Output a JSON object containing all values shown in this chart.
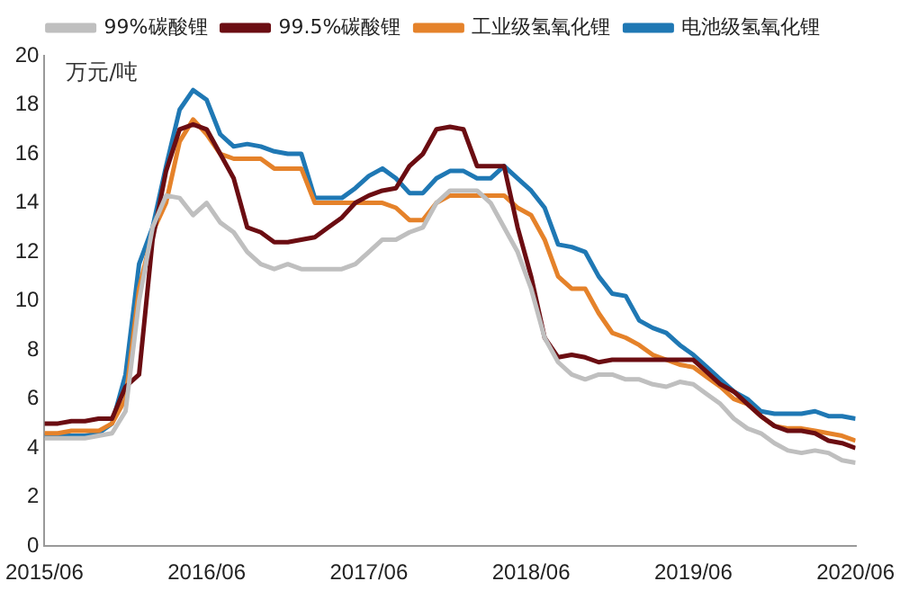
{
  "chart_data": {
    "type": "line",
    "ylabel": "万元/吨",
    "legend": "top",
    "grid": false,
    "marker": "none",
    "line_style": "solid",
    "x": [
      "2015-06",
      "2015-07",
      "2015-08",
      "2015-09",
      "2015-10",
      "2015-11",
      "2015-12",
      "2016-01",
      "2016-02",
      "2016-03",
      "2016-04",
      "2016-05",
      "2016-06",
      "2016-07",
      "2016-08",
      "2016-09",
      "2016-10",
      "2016-11",
      "2016-12",
      "2017-01",
      "2017-02",
      "2017-03",
      "2017-04",
      "2017-05",
      "2017-06",
      "2017-07",
      "2017-08",
      "2017-09",
      "2017-10",
      "2017-11",
      "2017-12",
      "2018-01",
      "2018-02",
      "2018-03",
      "2018-04",
      "2018-05",
      "2018-06",
      "2018-07",
      "2018-08",
      "2018-09",
      "2018-10",
      "2018-11",
      "2018-12",
      "2019-01",
      "2019-02",
      "2019-03",
      "2019-04",
      "2019-05",
      "2019-06",
      "2019-07",
      "2019-08",
      "2019-09",
      "2019-10",
      "2019-11",
      "2019-12",
      "2020-01",
      "2020-02",
      "2020-03",
      "2020-04",
      "2020-05",
      "2020-06"
    ],
    "xlim": [
      "2015-06",
      "2020-06"
    ],
    "xticks": [
      {
        "value": "2015-06",
        "label": "2015/06"
      },
      {
        "value": "2016-06",
        "label": "2016/06"
      },
      {
        "value": "2017-06",
        "label": "2017/06"
      },
      {
        "value": "2018-06",
        "label": "2018/06"
      },
      {
        "value": "2019-06",
        "label": "2019/06"
      },
      {
        "value": "2020-06",
        "label": "2020/06"
      }
    ],
    "ylim": [
      0,
      20
    ],
    "yticks": [
      0,
      2,
      4,
      6,
      8,
      10,
      12,
      14,
      16,
      18,
      20
    ],
    "series": [
      {
        "name": "99%碳酸锂",
        "color": "#bfbfbf",
        "values": [
          4.4,
          4.4,
          4.4,
          4.4,
          4.5,
          4.6,
          5.5,
          10,
          13,
          14.3,
          14.2,
          13.5,
          14,
          13.2,
          12.8,
          12,
          11.5,
          11.3,
          11.5,
          11.3,
          11.3,
          11.3,
          11.3,
          11.5,
          12,
          12.5,
          12.5,
          12.8,
          13,
          14,
          14.5,
          14.5,
          14.5,
          14,
          13,
          12,
          10.5,
          8.5,
          7.5,
          7,
          6.8,
          7,
          7,
          6.8,
          6.8,
          6.6,
          6.5,
          6.7,
          6.6,
          6.2,
          5.8,
          5.2,
          4.8,
          4.6,
          4.2,
          3.9,
          3.8,
          3.9,
          3.8,
          3.5,
          3.4
        ]
      },
      {
        "name": "99.5%碳酸锂",
        "color": "#6b0d12",
        "values": [
          5.0,
          5.0,
          5.1,
          5.1,
          5.2,
          5.2,
          6.5,
          7,
          12.5,
          15.3,
          17,
          17.2,
          17,
          16,
          15,
          13,
          12.8,
          12.4,
          12.4,
          12.5,
          12.6,
          13,
          13.4,
          14,
          14.3,
          14.5,
          14.6,
          15.5,
          16,
          17,
          17.1,
          17,
          15.5,
          15.5,
          15.5,
          13,
          11,
          8.5,
          7.7,
          7.8,
          7.7,
          7.5,
          7.6,
          7.6,
          7.6,
          7.6,
          7.6,
          7.6,
          7.6,
          7.1,
          6.6,
          6.3,
          5.8,
          5.3,
          4.9,
          4.7,
          4.7,
          4.6,
          4.3,
          4.2,
          4.0
        ]
      },
      {
        "name": "工业级氢氧化锂",
        "color": "#e5822a",
        "values": [
          4.6,
          4.6,
          4.7,
          4.7,
          4.7,
          5,
          6,
          10.5,
          12.8,
          14,
          16.5,
          17.4,
          16.8,
          16,
          15.8,
          15.8,
          15.8,
          15.4,
          15.4,
          15.4,
          14,
          14,
          14,
          14,
          14,
          14,
          13.8,
          13.3,
          13.3,
          14,
          14.3,
          14.3,
          14.3,
          14.3,
          14.3,
          13.8,
          13.5,
          12.5,
          11,
          10.5,
          10.5,
          9.5,
          8.7,
          8.5,
          8.2,
          7.8,
          7.6,
          7.4,
          7.3,
          6.9,
          6.5,
          6,
          5.8,
          5.3,
          4.9,
          4.8,
          4.8,
          4.7,
          4.6,
          4.5,
          4.3
        ]
      },
      {
        "name": "电池级氢氧化锂",
        "color": "#1f78b4",
        "values": [
          4.5,
          4.5,
          4.5,
          4.5,
          4.6,
          5,
          7,
          11.5,
          13,
          15.5,
          17.8,
          18.6,
          18.2,
          16.8,
          16.3,
          16.4,
          16.3,
          16.1,
          16,
          16,
          14.2,
          14.2,
          14.2,
          14.6,
          15.1,
          15.4,
          15,
          14.4,
          14.4,
          15,
          15.3,
          15.3,
          15,
          15,
          15.5,
          15,
          14.5,
          13.8,
          12.3,
          12.2,
          12,
          11,
          10.3,
          10.2,
          9.2,
          8.9,
          8.7,
          8.2,
          7.8,
          7.3,
          6.8,
          6.3,
          6,
          5.5,
          5.4,
          5.4,
          5.4,
          5.5,
          5.3,
          5.3,
          5.2
        ]
      }
    ]
  }
}
